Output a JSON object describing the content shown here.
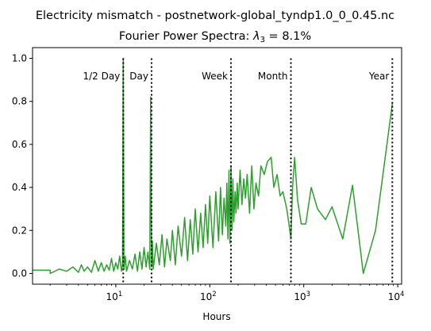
{
  "figure": {
    "suptitle": "Electricity mismatch - postnetwork-global_tyndp1.0_0_0.45.nc"
  },
  "chart_data": {
    "type": "line",
    "title_prefix": "Fourier Power Spectra: ",
    "title_symbol": "λ",
    "title_subscript": "3",
    "title_suffix": " = 8.1%",
    "xlabel": "Hours",
    "ylabel": "",
    "xscale": "log",
    "xlim": [
      1.3,
      11000
    ],
    "ylim": [
      -0.05,
      1.05
    ],
    "xticks": [
      {
        "value": 10,
        "base": "10",
        "exp": "1"
      },
      {
        "value": 100,
        "base": "10",
        "exp": "2"
      },
      {
        "value": 1000,
        "base": "10",
        "exp": "3"
      },
      {
        "value": 10000,
        "base": "10",
        "exp": "4"
      }
    ],
    "yticks": [
      "0.0",
      "0.2",
      "0.4",
      "0.6",
      "0.8",
      "1.0"
    ],
    "grid": false,
    "line_color": "#2ca02c",
    "marker_color": "#000000",
    "markers": [
      {
        "label": "1/2 Day",
        "x": 12
      },
      {
        "label": "Day",
        "x": 24
      },
      {
        "label": "Week",
        "x": 168
      },
      {
        "label": "Month",
        "x": 730
      },
      {
        "label": "Year",
        "x": 8760
      }
    ],
    "series": [
      {
        "x": [
          1.3,
          2,
          2,
          2.5,
          3,
          3.5,
          4,
          4.3,
          4.6,
          5,
          5.5,
          6,
          6.5,
          7,
          7.5,
          8,
          8.5,
          9,
          9.5,
          10,
          10.5,
          11,
          11.5,
          11.8,
          12,
          12.2,
          12.6,
          13,
          14,
          15,
          16,
          17,
          18,
          19,
          20,
          21,
          22,
          23,
          23.5,
          24,
          24.5,
          25,
          27,
          29,
          31,
          33,
          35,
          38,
          40,
          43,
          46,
          50,
          54,
          58,
          62,
          66,
          70,
          75,
          80,
          85,
          90,
          95,
          100,
          108,
          116,
          124,
          130,
          136,
          142,
          148,
          152,
          156,
          160,
          164,
          168,
          172,
          176,
          180,
          186,
          190,
          196,
          200,
          210,
          220,
          230,
          240,
          250,
          265,
          280,
          295,
          310,
          330,
          350,
          380,
          410,
          450,
          480,
          520,
          560,
          600,
          660,
          700,
          730,
          760,
          800,
          860,
          940,
          1050,
          1200,
          1400,
          1700,
          2000,
          2600,
          3300,
          4300,
          5800,
          8760
        ],
        "y": [
          0.015,
          0.015,
          0.0,
          0.02,
          0.01,
          0.03,
          0.005,
          0.04,
          0.01,
          0.03,
          0.005,
          0.06,
          0.01,
          0.05,
          0.01,
          0.04,
          0.015,
          0.07,
          0.01,
          0.05,
          0.02,
          0.08,
          0.01,
          0.04,
          1.0,
          0.02,
          0.08,
          0.01,
          0.06,
          0.02,
          0.09,
          0.01,
          0.1,
          0.02,
          0.12,
          0.03,
          0.1,
          0.02,
          0.82,
          0.03,
          0.15,
          0.02,
          0.14,
          0.04,
          0.18,
          0.03,
          0.16,
          0.06,
          0.2,
          0.04,
          0.22,
          0.08,
          0.26,
          0.06,
          0.25,
          0.09,
          0.3,
          0.1,
          0.28,
          0.12,
          0.32,
          0.14,
          0.36,
          0.12,
          0.38,
          0.15,
          0.4,
          0.18,
          0.35,
          0.22,
          0.42,
          0.16,
          0.48,
          0.14,
          0.5,
          0.2,
          0.44,
          0.24,
          0.38,
          0.28,
          0.42,
          0.3,
          0.48,
          0.32,
          0.44,
          0.35,
          0.46,
          0.28,
          0.5,
          0.3,
          0.42,
          0.36,
          0.5,
          0.46,
          0.52,
          0.54,
          0.4,
          0.46,
          0.36,
          0.38,
          0.3,
          0.22,
          0.16,
          0.4,
          0.54,
          0.34,
          0.23,
          0.23,
          0.4,
          0.3,
          0.25,
          0.31,
          0.16,
          0.41,
          0.0,
          0.2,
          0.79
        ]
      }
    ]
  }
}
